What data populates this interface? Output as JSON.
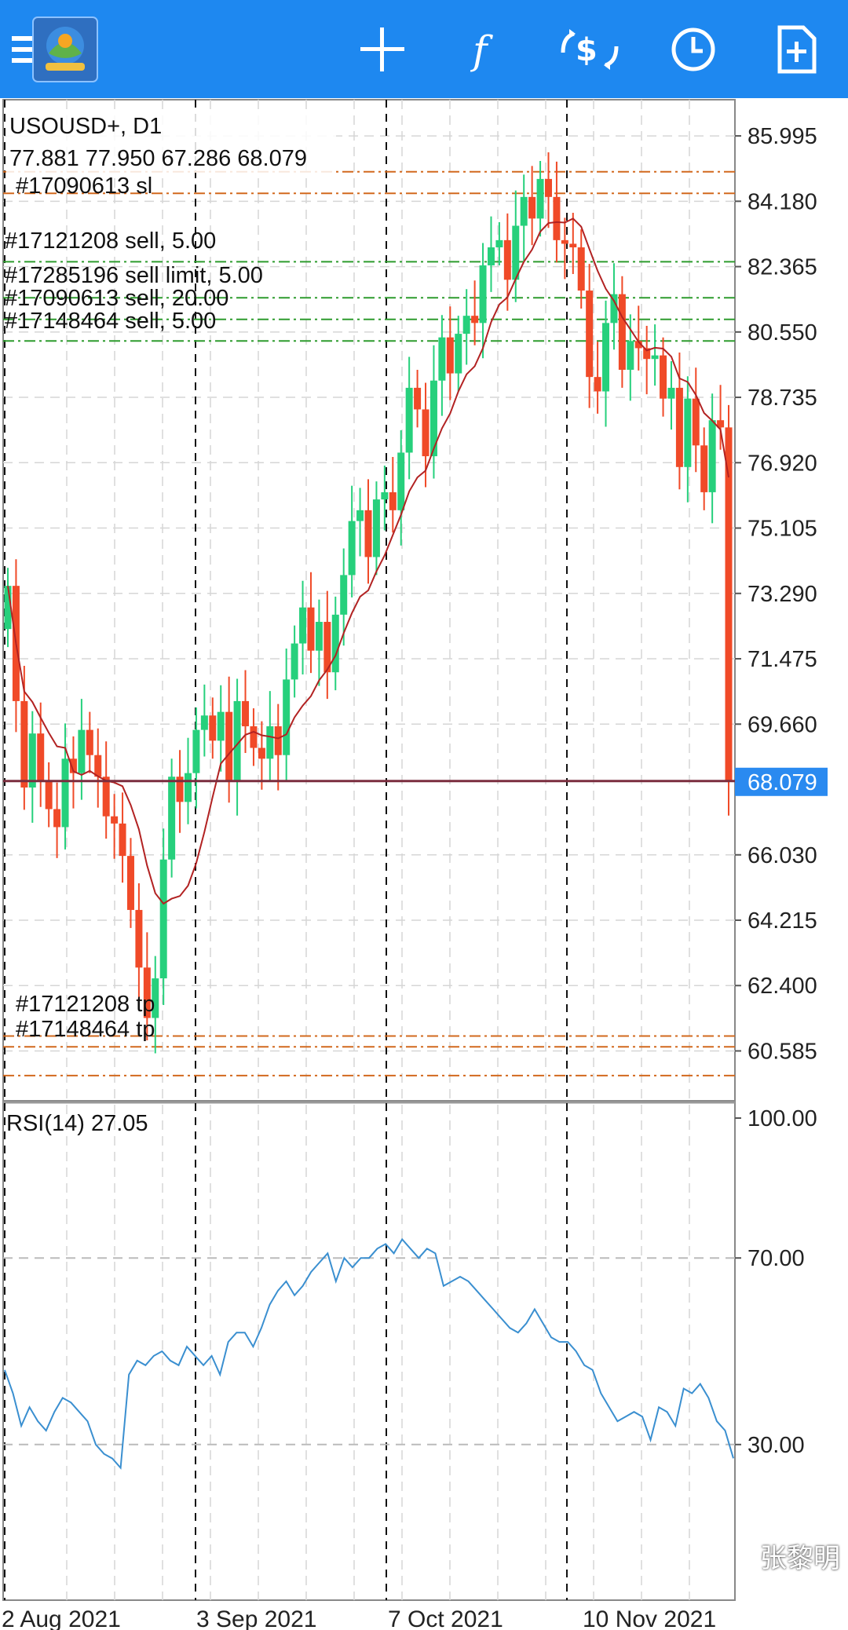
{
  "toolbar": {
    "items": [
      "menu-icon",
      "app-logo-icon",
      "crosshair-icon",
      "indicators-icon",
      "trade-icon",
      "clock-icon",
      "new-order-icon"
    ],
    "color": "#1e88f0"
  },
  "chart_data": {
    "type": "candlestick",
    "symbol_label": "USOUSD+, D1",
    "ohlc_label": "77.881 77.950 67.286 68.079",
    "current_price": "68.079",
    "current_price_value": 68.079,
    "price_axis_ticks": [
      "85.995",
      "84.180",
      "82.365",
      "80.550",
      "78.735",
      "76.920",
      "75.105",
      "73.290",
      "71.475",
      "69.660",
      "66.030",
      "64.215",
      "62.400",
      "60.585"
    ],
    "ylim": [
      59.2,
      87.0
    ],
    "date_labels": [
      "2 Aug 2021",
      "3 Sep 2021",
      "7 Oct 2021",
      "10 Nov 2021"
    ],
    "order_labels": [
      {
        "text": "#17090613 sl",
        "price": 84.75
      },
      {
        "text": "#17121208 sell, 5.00",
        "price": 82.6
      },
      {
        "text": "#17285196 sell limit, 5.00",
        "price": 81.8
      },
      {
        "text": "#17090613 sell, 20.00",
        "price": 81.3
      },
      {
        "text": "#17148464 sell, 5.00",
        "price": 80.8
      },
      {
        "text": "#17121208 tp",
        "price": 61.0
      },
      {
        "text": "#17148464 tp",
        "price": 60.3
      }
    ],
    "order_lines": [
      {
        "price": 85.0,
        "color": "#d2691e"
      },
      {
        "price": 84.4,
        "color": "#d2691e"
      },
      {
        "price": 82.5,
        "color": "#2e9c2e"
      },
      {
        "price": 81.5,
        "color": "#2e9c2e"
      },
      {
        "price": 80.9,
        "color": "#2e9c2e"
      },
      {
        "price": 80.3,
        "color": "#2e9c2e"
      },
      {
        "price": 61.0,
        "color": "#d2691e"
      },
      {
        "price": 60.7,
        "color": "#d2691e"
      },
      {
        "price": 59.9,
        "color": "#d2691e"
      }
    ],
    "closes": [
      73.5,
      70.3,
      67.9,
      69.4,
      68.1,
      67.3,
      66.8,
      68.7,
      68.3,
      69.5,
      68.8,
      68.2,
      67.1,
      66.9,
      66.0,
      64.5,
      62.9,
      61.5,
      62.6,
      65.9,
      68.2,
      67.5,
      68.3,
      69.5,
      69.9,
      69.2,
      70.0,
      68.1,
      70.3,
      69.6,
      69.0,
      68.7,
      69.6,
      68.8,
      70.9,
      71.9,
      72.9,
      71.7,
      72.5,
      71.1,
      72.7,
      73.8,
      75.3,
      75.6,
      74.3,
      75.9,
      76.1,
      75.6,
      77.2,
      79.0,
      78.4,
      77.1,
      79.2,
      80.4,
      79.4,
      80.5,
      81.0,
      80.8,
      82.4,
      82.9,
      83.1,
      82.0,
      83.5,
      84.3,
      83.7,
      84.8,
      84.3,
      83.1,
      83.0,
      82.9,
      81.7,
      79.3,
      78.9,
      80.8,
      81.6,
      79.5,
      80.3,
      80.1,
      79.8,
      79.9,
      78.7,
      79.0,
      76.8,
      78.7,
      77.4,
      76.1,
      78.1,
      77.9,
      68.1
    ],
    "rsi": {
      "label": "RSI(14) 27.05",
      "ticks": [
        "100.00",
        "70.00",
        "30.00"
      ],
      "levels": [
        70,
        30
      ],
      "ylim": [
        0,
        100
      ],
      "values": [
        46,
        41,
        34,
        38,
        35,
        33,
        37,
        40,
        39,
        37,
        35,
        30,
        28,
        27,
        25,
        45,
        48,
        47,
        49,
        50,
        48,
        47,
        51,
        49,
        47,
        49,
        45,
        52,
        54,
        54,
        51,
        55,
        60,
        63,
        65,
        62,
        64,
        67,
        69,
        71,
        65,
        70,
        68,
        70,
        70,
        72,
        73,
        71,
        74,
        72,
        70,
        72,
        71,
        64,
        65,
        66,
        65,
        63,
        61,
        59,
        57,
        55,
        54,
        56,
        59,
        56,
        53,
        52,
        52,
        50,
        47,
        46,
        41,
        38,
        35,
        36,
        37,
        36,
        31,
        38,
        37,
        34,
        42,
        41,
        43,
        40,
        35,
        33,
        27.05
      ]
    },
    "colors": {
      "bull": "#26d07c",
      "bear": "#f04a28",
      "ma": "#b22222",
      "rsi": "#3a8fd0",
      "price_box": "#2a8af0",
      "price_line": "#7b2d3e"
    }
  },
  "watermark": "张黎明"
}
